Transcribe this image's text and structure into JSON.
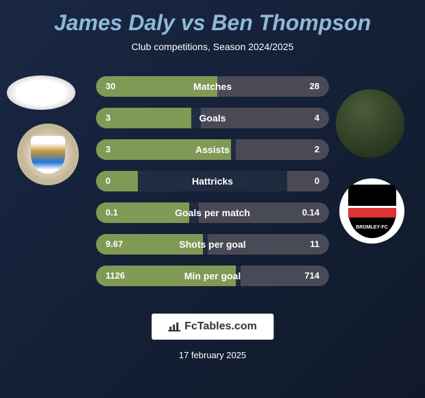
{
  "title": "James Daly vs Ben Thompson",
  "subtitle": "Club competitions, Season 2024/2025",
  "colors": {
    "left_bar": "#809955",
    "right_bar": "#4a4a56",
    "title": "#8eb8d8",
    "text": "#ffffff"
  },
  "stats": [
    {
      "left_val": "30",
      "label": "Matches",
      "right_val": "28",
      "left_pct": 52,
      "right_pct": 48
    },
    {
      "left_val": "3",
      "label": "Goals",
      "right_val": "4",
      "left_pct": 41,
      "right_pct": 55
    },
    {
      "left_val": "3",
      "label": "Assists",
      "right_val": "2",
      "left_pct": 58,
      "right_pct": 40
    },
    {
      "left_val": "0",
      "label": "Hattricks",
      "right_val": "0",
      "left_pct": 18,
      "right_pct": 18
    },
    {
      "left_val": "0.1",
      "label": "Goals per match",
      "right_val": "0.14",
      "left_pct": 40,
      "right_pct": 56
    },
    {
      "left_val": "9.67",
      "label": "Shots per goal",
      "right_val": "11",
      "left_pct": 46,
      "right_pct": 52
    },
    {
      "left_val": "1126",
      "label": "Min per goal",
      "right_val": "714",
      "left_pct": 60,
      "right_pct": 38
    }
  ],
  "footer": {
    "brand": "FcTables.com",
    "date": "17 february 2025"
  },
  "clubs": {
    "right_name": "BROMLEY·FC"
  }
}
